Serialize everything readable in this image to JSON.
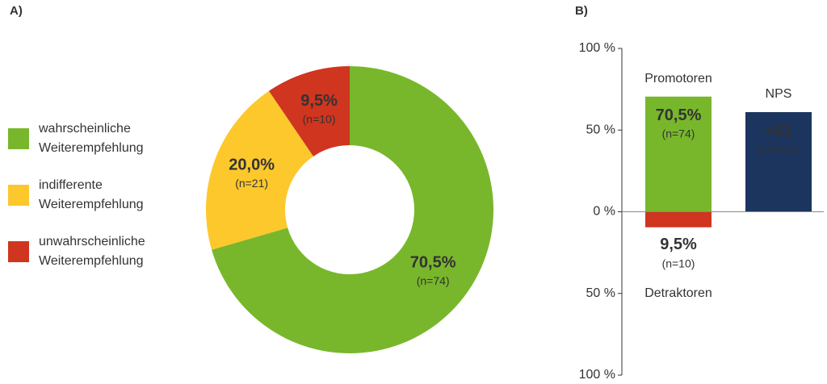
{
  "chart_data": [
    {
      "type": "donut",
      "title": "A)",
      "categories": [
        "wahrscheinliche Weiterempfehlung",
        "indifferente Weiterempfehlung",
        "unwahrscheinliche Weiterempfehlung"
      ],
      "values": [
        70.5,
        20.0,
        9.5
      ],
      "value_labels": [
        "70,5%",
        "20,0%",
        "9,5%"
      ],
      "counts": [
        74,
        21,
        10
      ],
      "count_labels": [
        "(n=74)",
        "(n=21)",
        "(n=10)"
      ],
      "colors": [
        "#78b72b",
        "#fcc82c",
        "#cf351f"
      ]
    },
    {
      "type": "bar",
      "title": "B)",
      "ylim": [
        -100,
        100
      ],
      "yticks": [
        {
          "value": 100,
          "label": "100 %"
        },
        {
          "value": 50,
          "label": "50 %"
        },
        {
          "value": 0,
          "label": "0 %"
        },
        {
          "value": -50,
          "label": "50 %"
        },
        {
          "value": -100,
          "label": "100 %"
        }
      ],
      "series": [
        {
          "name": "Promotoren",
          "color": "#78b72b",
          "values": [
            70.5,
            null
          ],
          "value_labels": [
            "70,5%",
            null
          ],
          "counts": [
            74,
            null
          ],
          "count_labels": [
            "(n=74)",
            null
          ]
        },
        {
          "name": "Detraktoren",
          "color": "#cf351f",
          "values": [
            -9.5,
            null
          ],
          "value_labels": [
            "9,5%",
            null
          ],
          "counts": [
            10,
            null
          ],
          "count_labels": [
            "(n=10)",
            null
          ]
        },
        {
          "name": "NPS",
          "color": "#1b355e",
          "values": [
            null,
            61
          ],
          "value_labels": [
            null,
            "+61"
          ],
          "counts": [
            null,
            105
          ],
          "count_labels": [
            null,
            "(n=105)"
          ]
        }
      ]
    }
  ]
}
